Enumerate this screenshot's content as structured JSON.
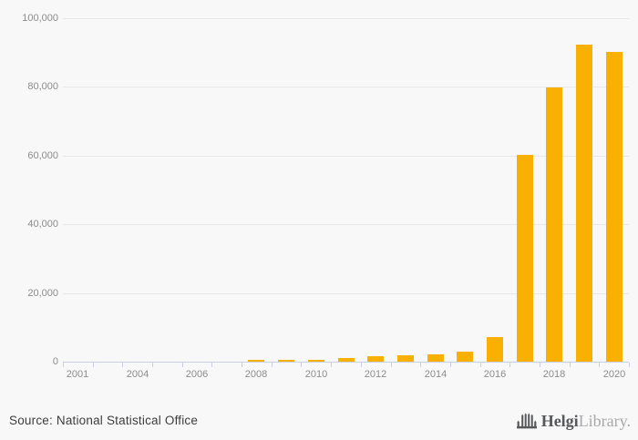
{
  "page": {
    "background": "#f8f8f8"
  },
  "chart_data": {
    "type": "bar",
    "categories": [
      "2001",
      "2003",
      "2004",
      "2005",
      "2006",
      "2007",
      "2008",
      "2009",
      "2010",
      "2011",
      "2012",
      "2013",
      "2014",
      "2015",
      "2016",
      "2017",
      "2018",
      "2019",
      "2020"
    ],
    "values": [
      0,
      0,
      0,
      0,
      0,
      0,
      400,
      500,
      550,
      1050,
      1600,
      1900,
      2200,
      2800,
      7200,
      60200,
      79800,
      92300,
      90100
    ],
    "title": "",
    "xlabel": "",
    "ylabel": "",
    "ylim": [
      0,
      100000
    ],
    "y_ticks": [
      0,
      20000,
      40000,
      60000,
      80000,
      100000
    ],
    "y_tick_labels": [
      "0",
      "20,000",
      "40,000",
      "60,000",
      "80,000",
      "100,000"
    ],
    "x_tick_labels": [
      "2001",
      "2004",
      "2006",
      "2008",
      "2010",
      "2012",
      "2014",
      "2016",
      "2018",
      "2020"
    ],
    "x_tick_label_slots": [
      0,
      2,
      4,
      6,
      8,
      10,
      12,
      14,
      16,
      18
    ],
    "grid": true,
    "legend": "none",
    "bar_color": "#f9b000",
    "grid_color": "#e7e7e7",
    "axis_color": "#c9cfe2",
    "tick_label_color": "#8c8c8c"
  },
  "footer": {
    "source": "Source: National Statistical Office"
  },
  "logo": {
    "bold": "Helgi",
    "light": "Library."
  }
}
